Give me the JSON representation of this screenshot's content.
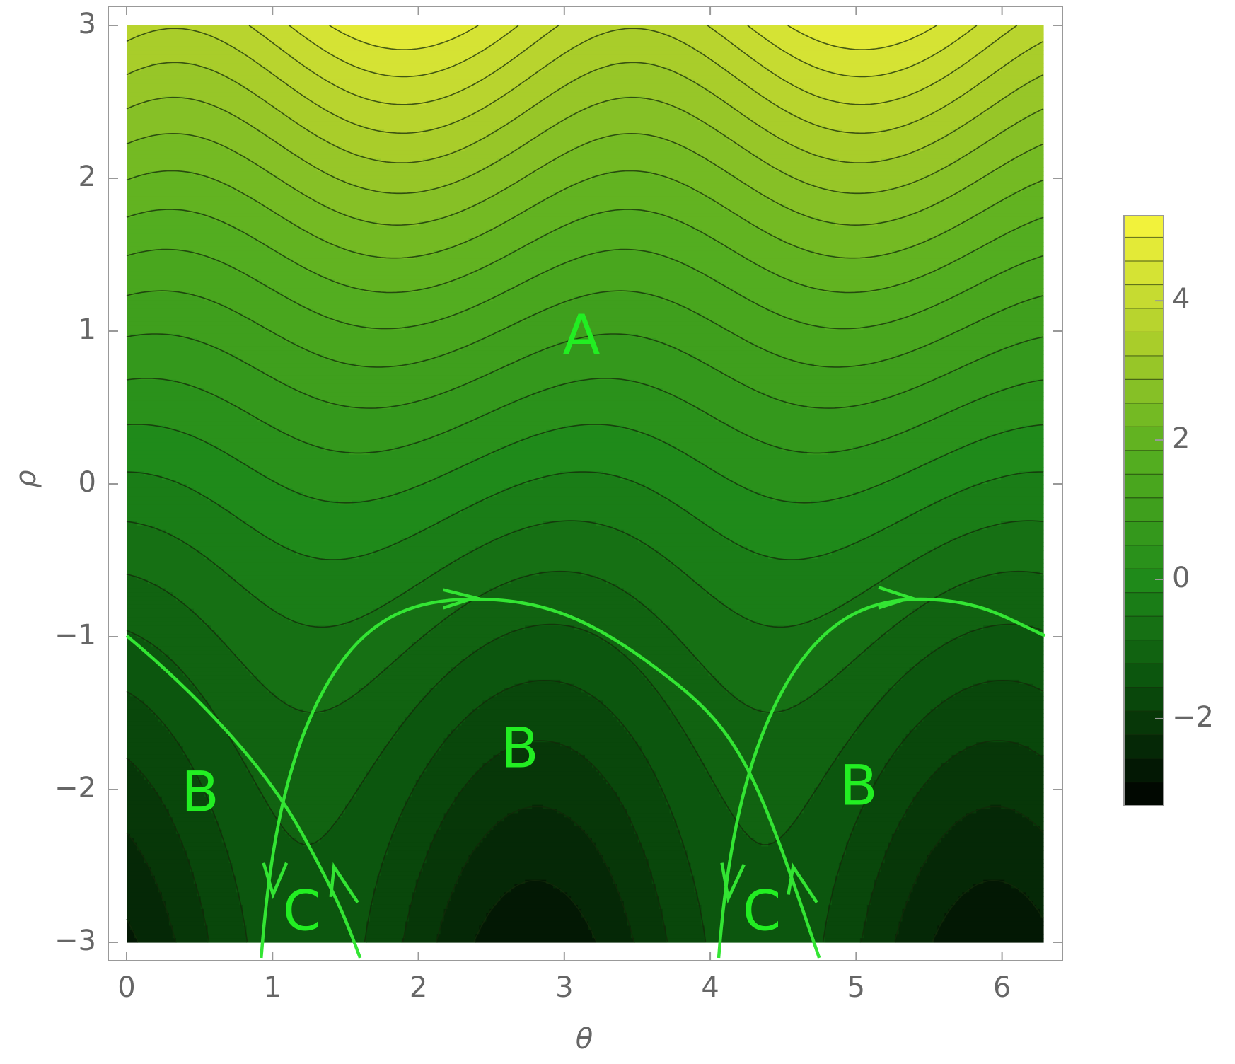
{
  "chart_data": {
    "type": "contour",
    "x_label": "θ",
    "y_label": "ρ",
    "xlim": [
      0,
      6.283
    ],
    "ylim": [
      -3,
      3
    ],
    "xticks": [
      0,
      1,
      2,
      3,
      4,
      5,
      6
    ],
    "yticks": [
      {
        "value": -3,
        "label": "−3"
      },
      {
        "value": -2,
        "label": "−2"
      },
      {
        "value": -1,
        "label": "−1"
      },
      0,
      1,
      2,
      3
    ],
    "colorbar": {
      "lim": [
        -3.25,
        5.22
      ],
      "ticks": [
        {
          "value": -2,
          "label": "−2"
        },
        0,
        2,
        4
      ]
    },
    "annotations": [
      "A",
      "B",
      "B",
      "B",
      "C",
      "C"
    ],
    "curve_color": "#33e533"
  }
}
